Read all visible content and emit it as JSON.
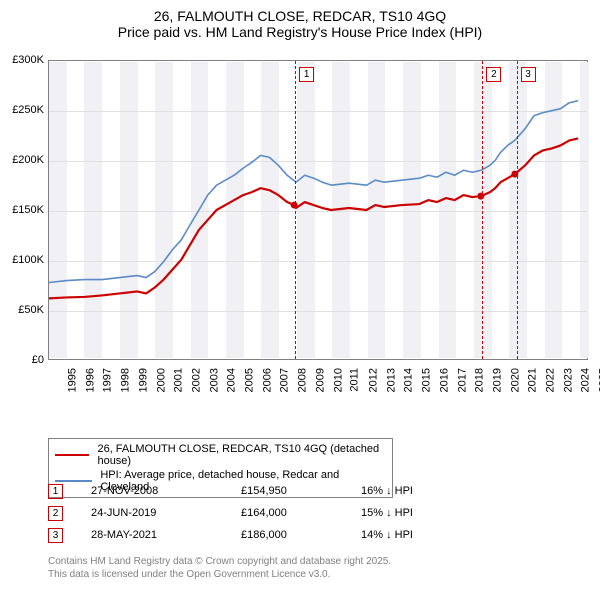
{
  "title": {
    "line1": "26, FALMOUTH CLOSE, REDCAR, TS10 4GQ",
    "line2": "Price paid vs. HM Land Registry's House Price Index (HPI)",
    "fontsize": 14
  },
  "chart": {
    "type": "line",
    "background_color": "#ffffff",
    "alt_band_color": "#f0f0f5",
    "grid_color": "#e0e0e0",
    "border_color": "#808080",
    "x": {
      "min": 1995,
      "max": 2025.5,
      "ticks": [
        1995,
        1996,
        1997,
        1998,
        1999,
        2000,
        2001,
        2002,
        2003,
        2004,
        2005,
        2006,
        2007,
        2008,
        2009,
        2010,
        2011,
        2012,
        2013,
        2014,
        2015,
        2016,
        2017,
        2018,
        2019,
        2020,
        2021,
        2022,
        2023,
        2024,
        2025
      ],
      "fontsize": 11
    },
    "y": {
      "min": 0,
      "max": 300000,
      "ticks": [
        0,
        50000,
        100000,
        150000,
        200000,
        250000,
        300000
      ],
      "tick_labels": [
        "£0",
        "£50K",
        "£100K",
        "£150K",
        "£200K",
        "£250K",
        "£300K"
      ],
      "fontsize": 11
    },
    "alt_bands": [
      [
        1995,
        1996
      ],
      [
        1997,
        1998
      ],
      [
        1999,
        2000
      ],
      [
        2001,
        2002
      ],
      [
        2003,
        2004
      ],
      [
        2005,
        2006
      ],
      [
        2007,
        2008
      ],
      [
        2009,
        2010
      ],
      [
        2011,
        2012
      ],
      [
        2013,
        2014
      ],
      [
        2015,
        2016
      ],
      [
        2017,
        2018
      ],
      [
        2019,
        2020
      ],
      [
        2021,
        2022
      ],
      [
        2023,
        2024
      ],
      [
        2025,
        2025.5
      ]
    ],
    "series": [
      {
        "name": "price_paid",
        "label": "26, FALMOUTH CLOSE, REDCAR, TS10 4GQ (detached house)",
        "color": "#cc0000",
        "width": 2.2,
        "points": [
          [
            1995,
            61000
          ],
          [
            1996,
            62000
          ],
          [
            1997,
            62500
          ],
          [
            1998,
            64000
          ],
          [
            1999,
            66000
          ],
          [
            2000,
            68000
          ],
          [
            2000.5,
            66000
          ],
          [
            2001,
            72000
          ],
          [
            2001.5,
            80000
          ],
          [
            2002,
            90000
          ],
          [
            2002.5,
            100000
          ],
          [
            2003,
            115000
          ],
          [
            2003.5,
            130000
          ],
          [
            2004,
            140000
          ],
          [
            2004.5,
            150000
          ],
          [
            2005,
            155000
          ],
          [
            2005.5,
            160000
          ],
          [
            2006,
            165000
          ],
          [
            2006.5,
            168000
          ],
          [
            2007,
            172000
          ],
          [
            2007.5,
            170000
          ],
          [
            2008,
            165000
          ],
          [
            2008.5,
            158000
          ],
          [
            2008.9,
            154950
          ],
          [
            2009,
            152000
          ],
          [
            2009.5,
            158000
          ],
          [
            2010,
            155000
          ],
          [
            2010.5,
            152000
          ],
          [
            2011,
            150000
          ],
          [
            2012,
            152000
          ],
          [
            2013,
            150000
          ],
          [
            2013.5,
            155000
          ],
          [
            2014,
            153000
          ],
          [
            2015,
            155000
          ],
          [
            2016,
            156000
          ],
          [
            2016.5,
            160000
          ],
          [
            2017,
            158000
          ],
          [
            2017.5,
            162000
          ],
          [
            2018,
            160000
          ],
          [
            2018.5,
            165000
          ],
          [
            2019,
            163000
          ],
          [
            2019.5,
            164000
          ],
          [
            2020,
            168000
          ],
          [
            2020.3,
            172000
          ],
          [
            2020.6,
            178000
          ],
          [
            2021,
            182000
          ],
          [
            2021.4,
            186000
          ],
          [
            2022,
            195000
          ],
          [
            2022.5,
            205000
          ],
          [
            2023,
            210000
          ],
          [
            2023.5,
            212000
          ],
          [
            2024,
            215000
          ],
          [
            2024.5,
            220000
          ],
          [
            2025,
            222000
          ]
        ]
      },
      {
        "name": "hpi",
        "label": "HPI: Average price, detached house, Redcar and Cleveland",
        "color": "#5b8bc7",
        "width": 1.6,
        "points": [
          [
            1995,
            77000
          ],
          [
            1996,
            79000
          ],
          [
            1997,
            80000
          ],
          [
            1998,
            80000
          ],
          [
            1999,
            82000
          ],
          [
            2000,
            84000
          ],
          [
            2000.5,
            82000
          ],
          [
            2001,
            88000
          ],
          [
            2001.5,
            98000
          ],
          [
            2002,
            110000
          ],
          [
            2002.5,
            120000
          ],
          [
            2003,
            135000
          ],
          [
            2003.5,
            150000
          ],
          [
            2004,
            165000
          ],
          [
            2004.5,
            175000
          ],
          [
            2005,
            180000
          ],
          [
            2005.5,
            185000
          ],
          [
            2006,
            192000
          ],
          [
            2006.5,
            198000
          ],
          [
            2007,
            205000
          ],
          [
            2007.5,
            203000
          ],
          [
            2008,
            195000
          ],
          [
            2008.5,
            185000
          ],
          [
            2009,
            178000
          ],
          [
            2009.5,
            185000
          ],
          [
            2010,
            182000
          ],
          [
            2010.5,
            178000
          ],
          [
            2011,
            175000
          ],
          [
            2012,
            177000
          ],
          [
            2013,
            175000
          ],
          [
            2013.5,
            180000
          ],
          [
            2014,
            178000
          ],
          [
            2015,
            180000
          ],
          [
            2016,
            182000
          ],
          [
            2016.5,
            185000
          ],
          [
            2017,
            183000
          ],
          [
            2017.5,
            188000
          ],
          [
            2018,
            185000
          ],
          [
            2018.5,
            190000
          ],
          [
            2019,
            188000
          ],
          [
            2019.5,
            190000
          ],
          [
            2020,
            195000
          ],
          [
            2020.3,
            200000
          ],
          [
            2020.6,
            208000
          ],
          [
            2021,
            215000
          ],
          [
            2021.4,
            220000
          ],
          [
            2022,
            232000
          ],
          [
            2022.5,
            245000
          ],
          [
            2023,
            248000
          ],
          [
            2023.5,
            250000
          ],
          [
            2024,
            252000
          ],
          [
            2024.5,
            258000
          ],
          [
            2025,
            260000
          ]
        ]
      }
    ],
    "markers": [
      {
        "id": "1",
        "x": 2008.9
      },
      {
        "id": "2",
        "x": 2019.48
      },
      {
        "id": "3",
        "x": 2021.41
      }
    ]
  },
  "legend": {
    "border_color": "#808080",
    "fontsize": 11,
    "items": [
      {
        "color": "#cc0000",
        "width": 2.2,
        "label_path": "chart.series.0.label"
      },
      {
        "color": "#5b8bc7",
        "width": 1.6,
        "label_path": "chart.series.1.label"
      }
    ]
  },
  "sales": [
    {
      "id": "1",
      "date": "27-NOV-2008",
      "price": "£154,950",
      "diff": "16% ↓ HPI"
    },
    {
      "id": "2",
      "date": "24-JUN-2019",
      "price": "£164,000",
      "diff": "15% ↓ HPI"
    },
    {
      "id": "3",
      "date": "28-MAY-2021",
      "price": "£186,000",
      "diff": "14% ↓ HPI"
    }
  ],
  "footer": {
    "line1": "Contains HM Land Registry data © Crown copyright and database right 2025.",
    "line2": "This data is licensed under the Open Government Licence v3.0.",
    "color": "#808080",
    "fontsize": 10
  }
}
